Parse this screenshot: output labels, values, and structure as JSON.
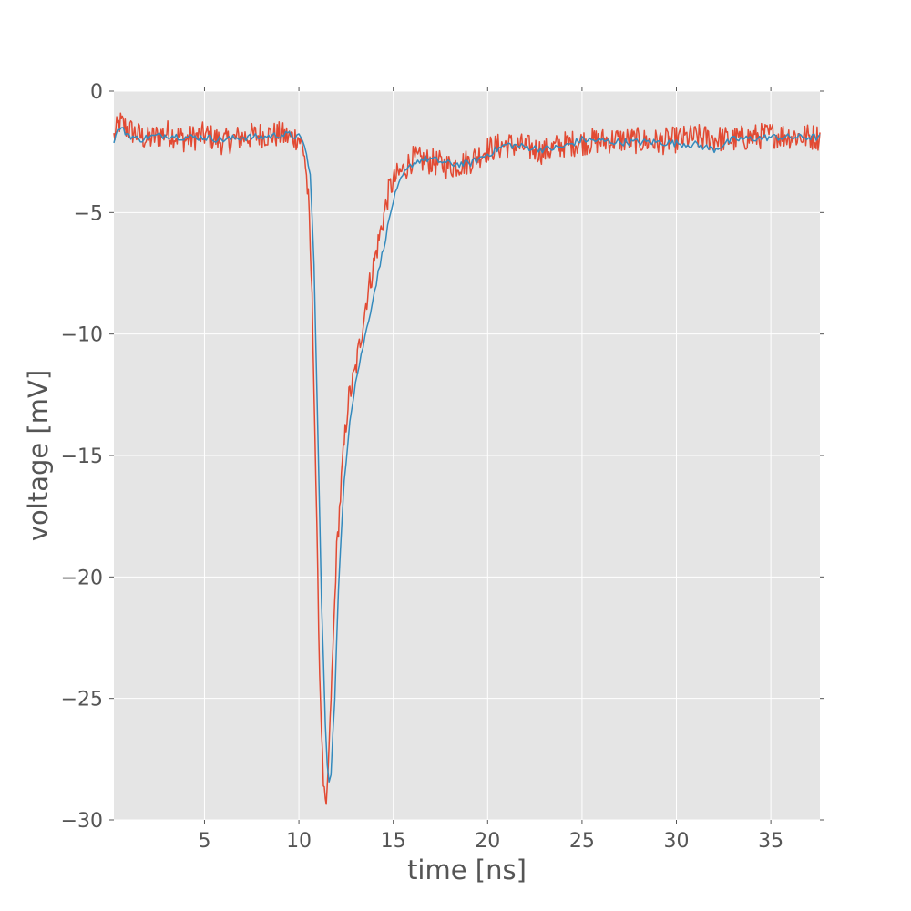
{
  "chart_data": {
    "type": "line",
    "title": "",
    "xlabel": "time [ns]",
    "ylabel": "voltage [mV]",
    "xlim": [
      0.2,
      37.6
    ],
    "ylim": [
      -30,
      0
    ],
    "x_ticks": [
      5,
      10,
      15,
      20,
      25,
      30,
      35
    ],
    "x_tick_labels": [
      "5",
      "10",
      "15",
      "20",
      "25",
      "30",
      "35"
    ],
    "y_ticks": [
      0,
      -5,
      -10,
      -15,
      -20,
      -25,
      -30
    ],
    "y_tick_labels": [
      "0",
      "−5",
      "−10",
      "−15",
      "−20",
      "−25",
      "−30"
    ],
    "grid": true,
    "background": "#e5e5e5",
    "grid_color": "#ffffff",
    "series": [
      {
        "color": "#e24a33",
        "noisy": true,
        "x": [
          0.2,
          0.5,
          1,
          1.5,
          2,
          3,
          4,
          5,
          6,
          7,
          8,
          9,
          9.5,
          10,
          10.3,
          10.5,
          10.7,
          10.9,
          11.1,
          11.3,
          11.45,
          11.6,
          11.8,
          12.0,
          12.3,
          12.6,
          13.0,
          13.3,
          13.6,
          14.0,
          14.4,
          14.8,
          15.2,
          15.6,
          16.0,
          17.0,
          18.0,
          19.0,
          20.0,
          21.0,
          22.0,
          23.0,
          24.0,
          25.0,
          27.0,
          29.0,
          31.0,
          33.0,
          35.0,
          37.6
        ],
        "y": [
          -1.9,
          -1.3,
          -1.6,
          -1.8,
          -2.0,
          -1.7,
          -2.0,
          -1.8,
          -2.1,
          -1.9,
          -1.8,
          -1.8,
          -1.9,
          -1.9,
          -2.6,
          -4.5,
          -8.5,
          -16.0,
          -24.0,
          -28.5,
          -29.6,
          -27.0,
          -23.0,
          -19.0,
          -15.5,
          -12.8,
          -11.5,
          -10.0,
          -8.5,
          -7.0,
          -5.5,
          -4.0,
          -3.5,
          -3.2,
          -2.8,
          -2.9,
          -3.1,
          -2.9,
          -2.4,
          -2.2,
          -2.3,
          -2.5,
          -2.2,
          -2.1,
          -2.0,
          -2.1,
          -1.9,
          -2.0,
          -1.8,
          -1.9
        ]
      },
      {
        "color": "#348abd",
        "noisy": false,
        "x": [
          0.2,
          0.5,
          1,
          1.5,
          2,
          3,
          4,
          5,
          6,
          7,
          8,
          9,
          9.5,
          10,
          10.3,
          10.6,
          10.8,
          11.0,
          11.2,
          11.4,
          11.55,
          11.7,
          11.9,
          12.1,
          12.4,
          12.7,
          13.0,
          13.4,
          13.8,
          14.2,
          14.6,
          15.0,
          15.5,
          16.0,
          16.5,
          17.0,
          18.0,
          19.0,
          20.0,
          21.0,
          22.0,
          23.0,
          24.0,
          25.0,
          27.0,
          29.0,
          31.0,
          32.0,
          33.0,
          35.0,
          37.6
        ],
        "y": [
          -2.0,
          -1.5,
          -1.8,
          -2.0,
          -1.9,
          -1.8,
          -1.9,
          -1.9,
          -2.0,
          -1.9,
          -1.9,
          -1.8,
          -1.8,
          -1.9,
          -2.2,
          -3.5,
          -7.0,
          -14.0,
          -21.0,
          -26.0,
          -28.5,
          -28.0,
          -25.0,
          -20.5,
          -16.0,
          -13.5,
          -12.0,
          -10.5,
          -9.0,
          -7.5,
          -6.0,
          -4.5,
          -3.5,
          -3.0,
          -2.8,
          -2.8,
          -3.0,
          -3.0,
          -2.6,
          -2.2,
          -2.3,
          -2.4,
          -2.3,
          -2.0,
          -2.1,
          -2.1,
          -2.2,
          -2.4,
          -2.0,
          -1.9,
          -1.9
        ]
      }
    ]
  }
}
